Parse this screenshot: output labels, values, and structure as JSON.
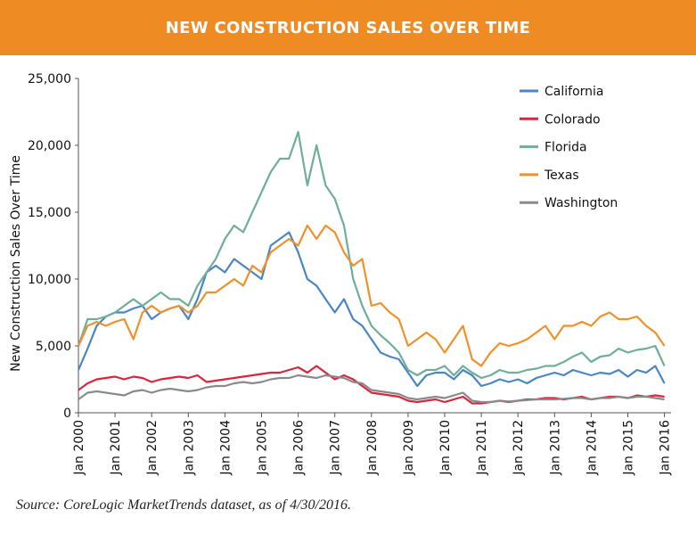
{
  "title": "NEW CONSTRUCTION SALES OVER TIME",
  "source": "Source: CoreLogic MarketTrends dataset, as of 4/30/2016.",
  "chart_data": {
    "type": "line",
    "title": "NEW CONSTRUCTION SALES OVER TIME",
    "ylabel": "New Construction Sales Over Time",
    "xlabel": "",
    "ylim": [
      0,
      25000
    ],
    "yticks": [
      "0",
      "5,000",
      "10,000",
      "15,000",
      "20,000",
      "25,000"
    ],
    "ytick_values": [
      0,
      5000,
      10000,
      15000,
      20000,
      25000
    ],
    "xticks": [
      "Jan 2000",
      "Jan 2001",
      "Jan 2002",
      "Jan 2003",
      "Jan 2004",
      "Jan 2005",
      "Jan 2006",
      "Jan 2007",
      "Jan 2008",
      "Jan 2009",
      "Jan 2010",
      "Jan 2011",
      "Jan 2012",
      "Jan 2013",
      "Jan 2014",
      "Jan 2015",
      "Jan 2016"
    ],
    "x_start": "2000-01",
    "x_step": "quarter",
    "grid": false,
    "legend_position": "top-right",
    "series": [
      {
        "name": "California",
        "color": "#4A86C5",
        "values": [
          3200,
          4800,
          6500,
          7200,
          7500,
          7500,
          7800,
          8000,
          7000,
          7500,
          7800,
          8000,
          7000,
          8500,
          10500,
          11000,
          10500,
          11500,
          11000,
          10500,
          10000,
          12500,
          13000,
          13500,
          12000,
          10000,
          9500,
          8500,
          7500,
          8500,
          7000,
          6500,
          5500,
          4500,
          4200,
          4000,
          3000,
          2000,
          2800,
          3000,
          3000,
          2500,
          3200,
          2800,
          2000,
          2200,
          2500,
          2300,
          2500,
          2200,
          2600,
          2800,
          3000,
          2800,
          3200,
          3000,
          2800,
          3000,
          2900,
          3200,
          2700,
          3200,
          3000,
          3500,
          2200
        ]
      },
      {
        "name": "Colorado",
        "color": "#D7263D",
        "values": [
          1700,
          2200,
          2500,
          2600,
          2700,
          2500,
          2700,
          2600,
          2300,
          2500,
          2600,
          2700,
          2600,
          2800,
          2300,
          2400,
          2500,
          2600,
          2700,
          2800,
          2900,
          3000,
          3000,
          3200,
          3400,
          3000,
          3500,
          3000,
          2500,
          2800,
          2500,
          2000,
          1500,
          1400,
          1300,
          1200,
          900,
          800,
          900,
          1000,
          800,
          1000,
          1200,
          700,
          700,
          800,
          900,
          800,
          900,
          1000,
          1000,
          1100,
          1100,
          1000,
          1100,
          1200,
          1000,
          1100,
          1200,
          1200,
          1100,
          1300,
          1200,
          1300,
          1200
        ]
      },
      {
        "name": "Florida",
        "color": "#6FAF98",
        "values": [
          5000,
          7000,
          7000,
          7200,
          7500,
          8000,
          8500,
          8000,
          8500,
          9000,
          8500,
          8500,
          8000,
          9500,
          10500,
          11500,
          13000,
          14000,
          13500,
          15000,
          16500,
          18000,
          19000,
          19000,
          21000,
          17000,
          20000,
          17000,
          16000,
          14000,
          10000,
          8000,
          6500,
          5800,
          5200,
          4500,
          3200,
          2800,
          3200,
          3200,
          3500,
          2800,
          3500,
          3000,
          2600,
          2800,
          3200,
          3000,
          3000,
          3200,
          3300,
          3500,
          3500,
          3800,
          4200,
          4500,
          3800,
          4200,
          4300,
          4800,
          4500,
          4700,
          4800,
          5000,
          3500
        ]
      },
      {
        "name": "Texas",
        "color": "#F0912B",
        "values": [
          5000,
          6500,
          6800,
          6500,
          6800,
          7000,
          5500,
          7500,
          8000,
          7500,
          7800,
          8000,
          7500,
          8000,
          9000,
          9000,
          9500,
          10000,
          9500,
          11000,
          10500,
          12000,
          12500,
          13000,
          12500,
          14000,
          13000,
          14000,
          13500,
          12000,
          11000,
          11500,
          8000,
          8200,
          7500,
          7000,
          5000,
          5500,
          6000,
          5500,
          4500,
          5500,
          6500,
          4000,
          3500,
          4500,
          5200,
          5000,
          5200,
          5500,
          6000,
          6500,
          5500,
          6500,
          6500,
          6800,
          6500,
          7200,
          7500,
          7000,
          7000,
          7200,
          6500,
          6000,
          5000
        ]
      },
      {
        "name": "Washington",
        "color": "#8A8A8A",
        "values": [
          1000,
          1500,
          1600,
          1500,
          1400,
          1300,
          1600,
          1700,
          1500,
          1700,
          1800,
          1700,
          1600,
          1700,
          1900,
          2000,
          2000,
          2200,
          2300,
          2200,
          2300,
          2500,
          2600,
          2600,
          2800,
          2700,
          2600,
          2800,
          2700,
          2600,
          2300,
          2200,
          1700,
          1600,
          1500,
          1400,
          1100,
          1000,
          1100,
          1200,
          1100,
          1300,
          1500,
          900,
          800,
          800,
          900,
          850,
          900,
          950,
          1000,
          1000,
          1000,
          1050,
          1100,
          1100,
          1000,
          1100,
          1100,
          1200,
          1100,
          1200,
          1200,
          1100,
          1000
        ]
      }
    ]
  }
}
